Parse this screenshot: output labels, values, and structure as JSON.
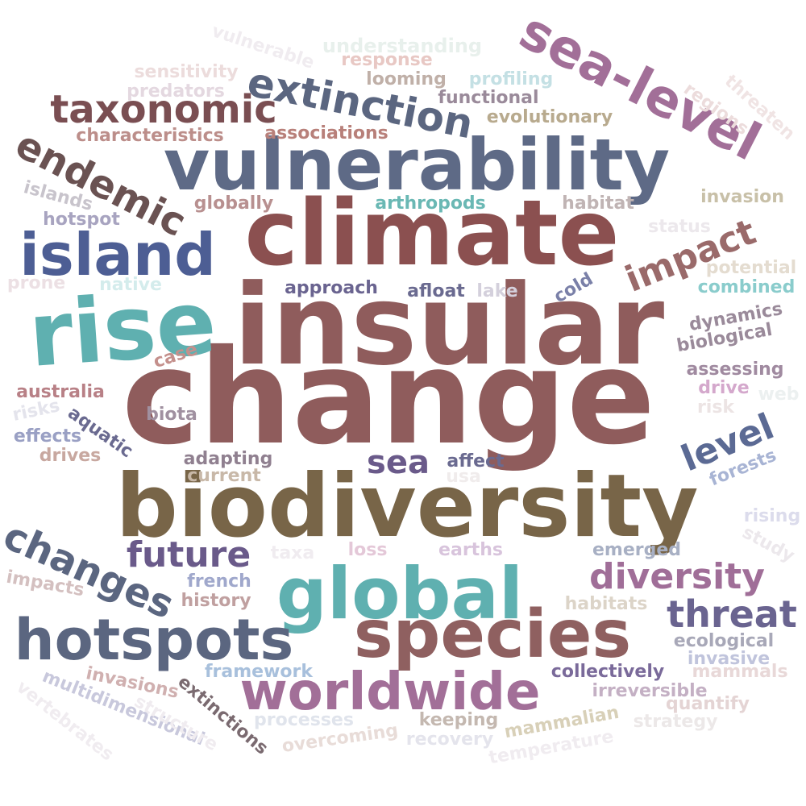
{
  "words": [
    {
      "text": "change",
      "color": "#8f5c5c"
    },
    {
      "text": "insular",
      "color": "#8f5c5c"
    },
    {
      "text": "biodiversity",
      "color": "#786548"
    },
    {
      "text": "climate",
      "color": "#8b5050"
    },
    {
      "text": "vulnerability",
      "color": "#5e6a86"
    },
    {
      "text": "rise",
      "color": "#5fb0b0"
    },
    {
      "text": "global",
      "color": "#5fb0b0"
    },
    {
      "text": "species",
      "color": "#8f6060"
    },
    {
      "text": "hotspots",
      "color": "#5b6680"
    },
    {
      "text": "worldwide",
      "color": "#a26f98"
    },
    {
      "text": "island",
      "color": "#4d5e94"
    },
    {
      "text": "sea-level",
      "color": "#a26f98"
    },
    {
      "text": "extinction",
      "color": "#5b6680"
    },
    {
      "text": "taxonomic",
      "color": "#7a4e52"
    },
    {
      "text": "endemic",
      "color": "#6a5252"
    },
    {
      "text": "changes",
      "color": "#5b6680"
    },
    {
      "text": "threat",
      "color": "#6a6490"
    },
    {
      "text": "diversity",
      "color": "#a06e98"
    },
    {
      "text": "future",
      "color": "#6a5a8a"
    },
    {
      "text": "impact",
      "color": "#9a6a6a"
    },
    {
      "text": "level",
      "color": "#5b6a94"
    },
    {
      "text": "sea",
      "color": "#6a5a8a"
    },
    {
      "text": "characteristics",
      "color": "#bc8e8a"
    },
    {
      "text": "associations",
      "color": "#b8807a"
    },
    {
      "text": "evolutionary",
      "color": "#b8aa8e"
    },
    {
      "text": "functional",
      "color": "#9a8a9a"
    },
    {
      "text": "looming",
      "color": "#c0b0a8"
    },
    {
      "text": "profiling",
      "color": "#c4e0e4"
    },
    {
      "text": "response",
      "color": "#e8c8c4"
    },
    {
      "text": "understanding",
      "color": "#e8f0ec"
    },
    {
      "text": "sensitivity",
      "color": "#ecdcdc"
    },
    {
      "text": "predators",
      "color": "#e4d8e0"
    },
    {
      "text": "vulnerable",
      "color": "#f0ecf0"
    },
    {
      "text": "regions",
      "color": "#ecdcdc"
    },
    {
      "text": "threaten",
      "color": "#f0e4e4"
    },
    {
      "text": "islands",
      "color": "#c8c4cc"
    },
    {
      "text": "hotspot",
      "color": "#a8a4c0"
    },
    {
      "text": "globally",
      "color": "#b89090"
    },
    {
      "text": "arthropods",
      "color": "#6ab8b4"
    },
    {
      "text": "habitat",
      "color": "#c0b4b4"
    },
    {
      "text": "invasion",
      "color": "#c8c0a8"
    },
    {
      "text": "status",
      "color": "#ece8ec"
    },
    {
      "text": "potential",
      "color": "#e4dcd0"
    },
    {
      "text": "combined",
      "color": "#8acccc"
    },
    {
      "text": "prone",
      "color": "#ece0e4"
    },
    {
      "text": "native",
      "color": "#d4ecec"
    },
    {
      "text": "approach",
      "color": "#6a6490"
    },
    {
      "text": "afloat",
      "color": "#6a6a90"
    },
    {
      "text": "lake",
      "color": "#d4d0dc"
    },
    {
      "text": "cold",
      "color": "#7a80a8"
    },
    {
      "text": "dynamics",
      "color": "#9a8a9a"
    },
    {
      "text": "biological",
      "color": "#9a8a9a"
    },
    {
      "text": "case",
      "color": "#c4908c"
    },
    {
      "text": "assessing",
      "color": "#a08aa0"
    },
    {
      "text": "australia",
      "color": "#b88086"
    },
    {
      "text": "drive",
      "color": "#d4a8cc"
    },
    {
      "text": "web",
      "color": "#ecf0f0"
    },
    {
      "text": "risk",
      "color": "#ece4e4"
    },
    {
      "text": "risks",
      "color": "#e4e4ec"
    },
    {
      "text": "biota",
      "color": "#a090a0"
    },
    {
      "text": "aquatic",
      "color": "#6a6a90"
    },
    {
      "text": "effects",
      "color": "#9aa0c4"
    },
    {
      "text": "drives",
      "color": "#c8a8a0"
    },
    {
      "text": "adapting",
      "color": "#908090"
    },
    {
      "text": "affect",
      "color": "#6a6a90"
    },
    {
      "text": "current",
      "color": "#c8b8a8"
    },
    {
      "text": "usa",
      "color": "#f0ecec"
    },
    {
      "text": "forests",
      "color": "#a8b4d4"
    },
    {
      "text": "rising",
      "color": "#dcdcec"
    },
    {
      "text": "study",
      "color": "#ece8ec"
    },
    {
      "text": "taxa",
      "color": "#f0ecf0"
    },
    {
      "text": "loss",
      "color": "#e4c8d8"
    },
    {
      "text": "earths",
      "color": "#d8c4dc"
    },
    {
      "text": "emerged",
      "color": "#a8b0c4"
    },
    {
      "text": "impacts",
      "color": "#d4c0c0"
    },
    {
      "text": "french",
      "color": "#a0a8cc"
    },
    {
      "text": "history",
      "color": "#c0a0a0"
    },
    {
      "text": "habitats",
      "color": "#dcd4c8"
    },
    {
      "text": "ecological",
      "color": "#a8a8b8"
    },
    {
      "text": "invasive",
      "color": "#c0c4dc"
    },
    {
      "text": "mammals",
      "color": "#e8d8d8"
    },
    {
      "text": "framework",
      "color": "#a8c0dc"
    },
    {
      "text": "collectively",
      "color": "#7a6a9a"
    },
    {
      "text": "invasions",
      "color": "#d0b0b0"
    },
    {
      "text": "extinctions",
      "color": "#7a6a70"
    },
    {
      "text": "irreversible",
      "color": "#c4b0c4"
    },
    {
      "text": "quantify",
      "color": "#e4d4d4"
    },
    {
      "text": "multidimensional",
      "color": "#c8c8dc"
    },
    {
      "text": "structure",
      "color": "#f0ecf0"
    },
    {
      "text": "processes",
      "color": "#e0e4ec"
    },
    {
      "text": "keeping",
      "color": "#c4b8b0"
    },
    {
      "text": "mammalian",
      "color": "#d8d0b8"
    },
    {
      "text": "strategy",
      "color": "#ece8e8"
    },
    {
      "text": "overcoming",
      "color": "#e8dcd8"
    },
    {
      "text": "recovery",
      "color": "#e4e4ec"
    },
    {
      "text": "temperature",
      "color": "#f0ecf0"
    },
    {
      "text": "vertebrates",
      "color": "#f0ecf0"
    }
  ]
}
